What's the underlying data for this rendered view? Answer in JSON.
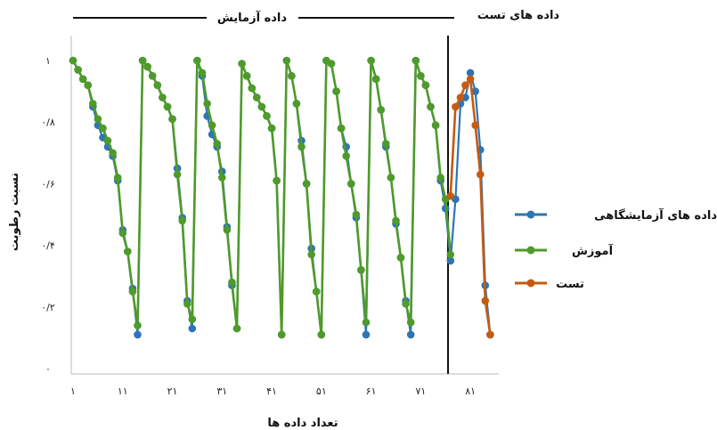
{
  "chart_data": {
    "type": "line",
    "xlabel": "تعداد داده ها",
    "ylabel": "نسبت رطوبت",
    "x_ticks": [
      1,
      11,
      21,
      31,
      41,
      51,
      61,
      71,
      81
    ],
    "x_tick_labels": [
      "۱",
      "۱۱",
      "۲۱",
      "۳۱",
      "۴۱",
      "۵۱",
      "۶۱",
      "۷۱",
      "۸۱"
    ],
    "y_ticks": [
      0,
      0.2,
      0.4,
      0.6,
      0.8,
      1
    ],
    "y_tick_labels": [
      "۰",
      "۰/۲",
      "۰/۴",
      "۰/۶",
      "۰/۸",
      "۱"
    ],
    "xlim": [
      1,
      86
    ],
    "ylim": [
      0,
      1
    ],
    "grid": false,
    "legend_position": "right",
    "split_x": 77,
    "section_labels": {
      "train": "داده آزمایش",
      "test": "داده های تست"
    },
    "series": [
      {
        "name": "داده های آزمایشگاهی",
        "color": "#2e75b6",
        "x": [
          1,
          2,
          3,
          4,
          5,
          6,
          7,
          8,
          9,
          10,
          11,
          12,
          13,
          14,
          15,
          16,
          17,
          18,
          19,
          20,
          21,
          22,
          23,
          24,
          25,
          26,
          27,
          28,
          29,
          30,
          31,
          32,
          33,
          34,
          35,
          36,
          37,
          38,
          39,
          40,
          41,
          42,
          43,
          44,
          45,
          46,
          47,
          48,
          49,
          50,
          51,
          52,
          53,
          54,
          55,
          56,
          57,
          58,
          59,
          60,
          61,
          62,
          63,
          64,
          65,
          66,
          67,
          68,
          69,
          70,
          71,
          72,
          73,
          74,
          75,
          76,
          77,
          78,
          79,
          80,
          81,
          82,
          83,
          84,
          85
        ],
        "y": [
          1,
          0.97,
          0.94,
          0.92,
          0.85,
          0.79,
          0.75,
          0.72,
          0.69,
          0.61,
          0.45,
          0.38,
          0.26,
          0.11,
          1,
          0.98,
          0.95,
          0.92,
          0.88,
          0.85,
          0.81,
          0.65,
          0.49,
          0.22,
          0.13,
          1,
          0.95,
          0.82,
          0.76,
          0.72,
          0.64,
          0.46,
          0.27,
          0.13,
          0.99,
          0.95,
          0.91,
          0.88,
          0.85,
          0.82,
          0.78,
          0.61,
          0.11,
          1,
          0.95,
          0.86,
          0.74,
          0.6,
          0.39,
          0.25,
          0.11,
          1,
          0.99,
          0.9,
          0.78,
          0.72,
          0.6,
          0.49,
          0.32,
          0.11,
          1,
          0.94,
          0.84,
          0.72,
          0.62,
          0.47,
          0.36,
          0.22,
          0.11,
          1,
          0.95,
          0.92,
          0.85,
          0.79,
          0.61,
          0.52,
          0.35,
          0.55,
          0.86,
          0.88,
          0.96,
          0.9,
          0.71,
          0.27,
          0.11
        ]
      },
      {
        "name": "آموزش",
        "color": "#4e9a2a",
        "x": [
          1,
          2,
          3,
          4,
          5,
          6,
          7,
          8,
          9,
          10,
          11,
          12,
          13,
          14,
          15,
          16,
          17,
          18,
          19,
          20,
          21,
          22,
          23,
          24,
          25,
          26,
          27,
          28,
          29,
          30,
          31,
          32,
          33,
          34,
          35,
          36,
          37,
          38,
          39,
          40,
          41,
          42,
          43,
          44,
          45,
          46,
          47,
          48,
          49,
          50,
          51,
          52,
          53,
          54,
          55,
          56,
          57,
          58,
          59,
          60,
          61,
          62,
          63,
          64,
          65,
          66,
          67,
          68,
          69,
          70,
          71,
          72,
          73,
          74,
          75,
          76,
          77
        ],
        "y": [
          1,
          0.97,
          0.94,
          0.92,
          0.86,
          0.81,
          0.78,
          0.74,
          0.7,
          0.62,
          0.44,
          0.38,
          0.25,
          0.14,
          1,
          0.98,
          0.95,
          0.92,
          0.88,
          0.85,
          0.81,
          0.63,
          0.48,
          0.21,
          0.16,
          1,
          0.96,
          0.86,
          0.79,
          0.73,
          0.62,
          0.45,
          0.28,
          0.13,
          0.99,
          0.95,
          0.91,
          0.88,
          0.85,
          0.82,
          0.78,
          0.61,
          0.11,
          1,
          0.95,
          0.86,
          0.72,
          0.6,
          0.37,
          0.25,
          0.11,
          1,
          0.99,
          0.9,
          0.78,
          0.69,
          0.6,
          0.5,
          0.32,
          0.15,
          1,
          0.94,
          0.84,
          0.73,
          0.62,
          0.48,
          0.36,
          0.21,
          0.15,
          1,
          0.95,
          0.92,
          0.85,
          0.79,
          0.62,
          0.55,
          0.37
        ]
      },
      {
        "name": "تست",
        "color": "#c55a11",
        "x": [
          77,
          78,
          79,
          80,
          81,
          82,
          83,
          84,
          85
        ],
        "y": [
          0.56,
          0.85,
          0.88,
          0.92,
          0.94,
          0.79,
          0.63,
          0.22,
          0.11
        ]
      }
    ]
  }
}
